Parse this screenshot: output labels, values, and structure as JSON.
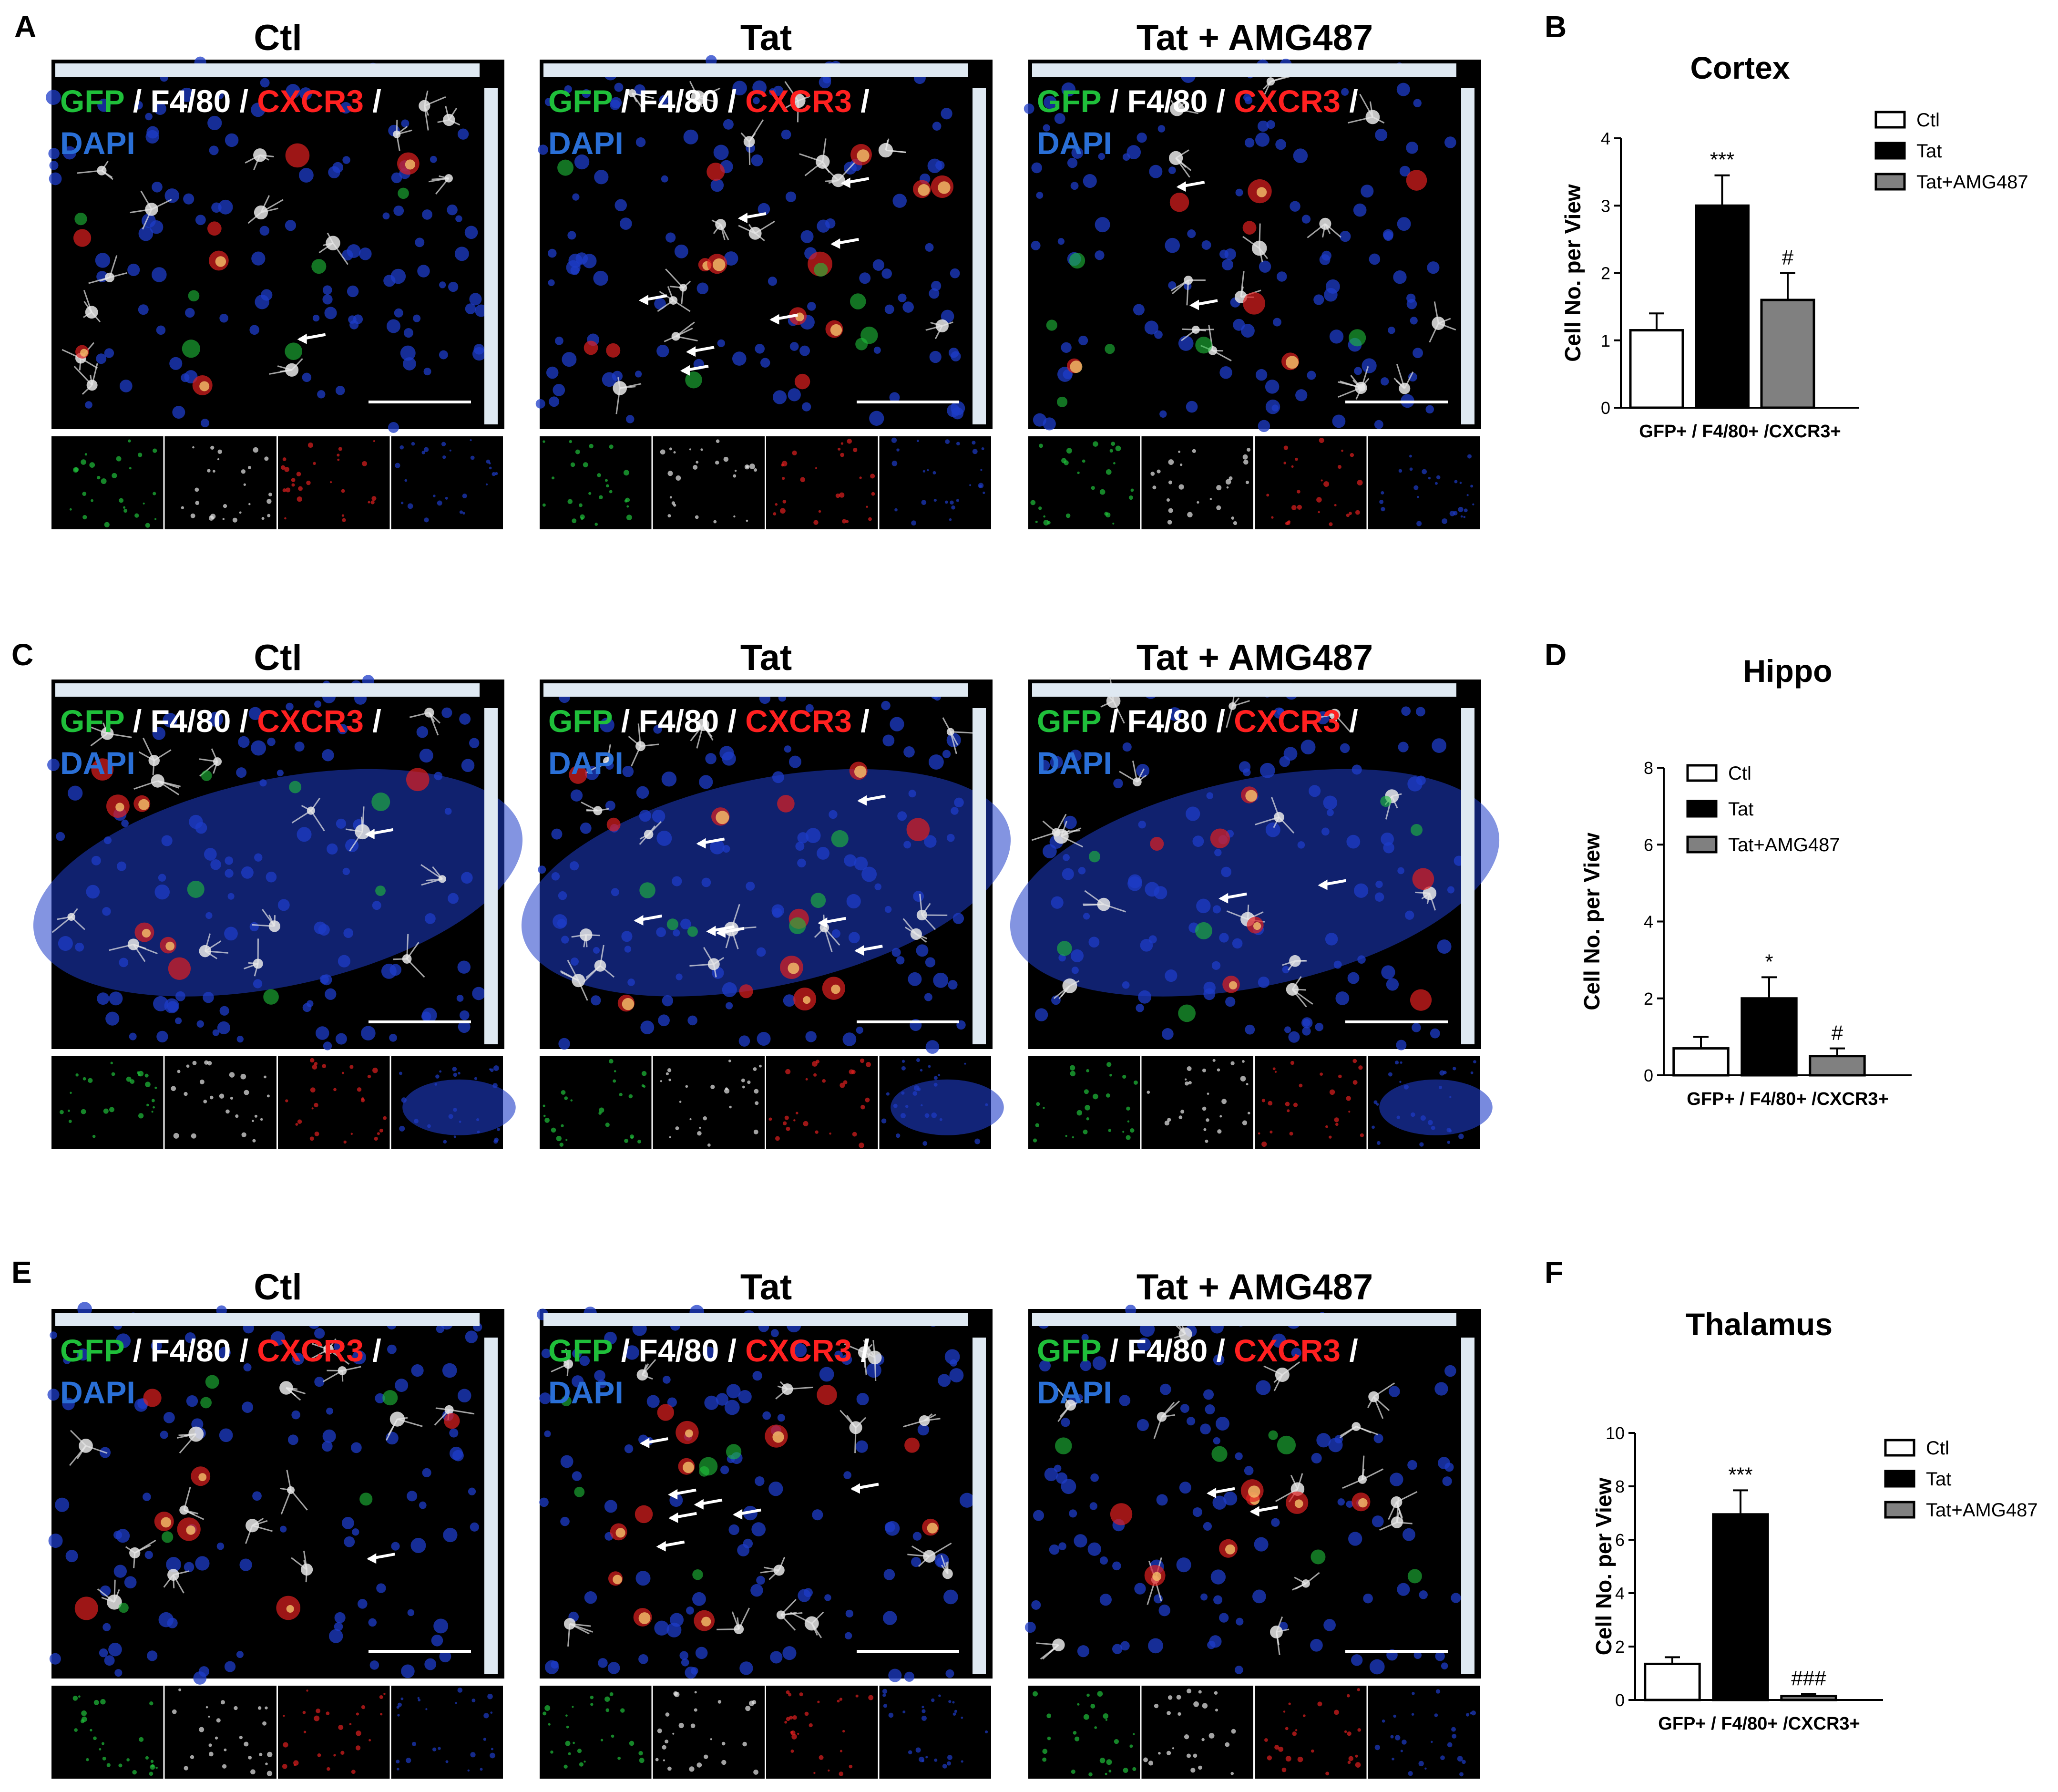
{
  "panel_letters": [
    "A",
    "B",
    "C",
    "D",
    "E",
    "F"
  ],
  "conditions": [
    "Ctl",
    "Tat",
    "Tat + AMG487"
  ],
  "stain_parts": [
    {
      "text": "GFP",
      "color": "#1fbf3a"
    },
    {
      "text": " / ",
      "color": "#ffffff"
    },
    {
      "text": "F4/80",
      "color": "#ffffff"
    },
    {
      "text": " / ",
      "color": "#ffffff"
    },
    {
      "text": "CXCR3",
      "color": "#ff2020"
    },
    {
      "text": " /",
      "color": "#ffffff"
    }
  ],
  "stain_dapi": {
    "text": "DAPI",
    "color": "#2a6fd6"
  },
  "colors": {
    "ctl_fill": "#ffffff",
    "tat_fill": "#000000",
    "amg_fill": "#808080",
    "micrograph_bg": "#000000",
    "dapi_blue": "#1e3cc8",
    "gfp_green": "#1fbf3a",
    "f480_white": "#e8e8e8",
    "cxcr3_red": "#e02020"
  },
  "chart_data": [
    {
      "type": "bar",
      "panel": "B",
      "title": "Cortex",
      "ylabel": "Cell No. per View",
      "xlabel": "GFP+ / F4/80+ /CXCR3+",
      "ylim": [
        0,
        4
      ],
      "yticks": [
        "0",
        "1",
        "2",
        "3",
        "4"
      ],
      "legend_position": "right",
      "series": [
        {
          "name": "Ctl",
          "value": 1.15,
          "error": 0.25,
          "annotation": ""
        },
        {
          "name": "Tat",
          "value": 3.0,
          "error": 0.45,
          "annotation": "***"
        },
        {
          "name": "Tat+AMG487",
          "value": 1.6,
          "error": 0.4,
          "annotation": "#"
        }
      ]
    },
    {
      "type": "bar",
      "panel": "D",
      "title": "Hippo",
      "ylabel": "Cell No. per View",
      "xlabel": "GFP+ / F4/80+ /CXCR3+",
      "ylim": [
        0,
        8
      ],
      "yticks": [
        "0",
        "2",
        "4",
        "6",
        "8"
      ],
      "legend_position": "top-left",
      "series": [
        {
          "name": "Ctl",
          "value": 0.7,
          "error": 0.3,
          "annotation": ""
        },
        {
          "name": "Tat",
          "value": 2.0,
          "error": 0.55,
          "annotation": "*"
        },
        {
          "name": "Tat+AMG487",
          "value": 0.5,
          "error": 0.2,
          "annotation": "#"
        }
      ]
    },
    {
      "type": "bar",
      "panel": "F",
      "title": "Thalamus",
      "ylabel": "Cell No. per View",
      "xlabel": "GFP+ / F4/80+ /CXCR3+",
      "ylim": [
        0,
        10
      ],
      "yticks": [
        "0",
        "2",
        "4",
        "6",
        "8",
        "10"
      ],
      "legend_position": "right",
      "series": [
        {
          "name": "Ctl",
          "value": 1.35,
          "error": 0.25,
          "annotation": ""
        },
        {
          "name": "Tat",
          "value": 6.95,
          "error": 0.9,
          "annotation": "***"
        },
        {
          "name": "Tat+AMG487",
          "value": 0.15,
          "error": 0.08,
          "annotation": "###"
        }
      ]
    }
  ]
}
